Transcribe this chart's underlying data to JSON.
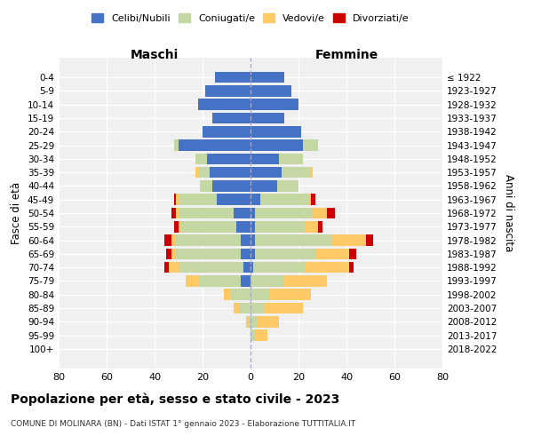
{
  "age_groups": [
    "0-4",
    "5-9",
    "10-14",
    "15-19",
    "20-24",
    "25-29",
    "30-34",
    "35-39",
    "40-44",
    "45-49",
    "50-54",
    "55-59",
    "60-64",
    "65-69",
    "70-74",
    "75-79",
    "80-84",
    "85-89",
    "90-94",
    "95-99",
    "100+"
  ],
  "birth_years": [
    "2018-2022",
    "2013-2017",
    "2008-2012",
    "2003-2007",
    "1998-2002",
    "1993-1997",
    "1988-1992",
    "1983-1987",
    "1978-1982",
    "1973-1977",
    "1968-1972",
    "1963-1967",
    "1958-1962",
    "1953-1957",
    "1948-1952",
    "1943-1947",
    "1938-1942",
    "1933-1937",
    "1928-1932",
    "1923-1927",
    "≤ 1922"
  ],
  "males": {
    "celibi": [
      15,
      19,
      22,
      16,
      20,
      30,
      18,
      17,
      16,
      14,
      7,
      6,
      4,
      4,
      3,
      4,
      0,
      0,
      0,
      0,
      0
    ],
    "coniugati": [
      0,
      0,
      0,
      0,
      0,
      2,
      5,
      5,
      5,
      16,
      23,
      23,
      27,
      27,
      27,
      18,
      8,
      5,
      1,
      0,
      0
    ],
    "vedovi": [
      0,
      0,
      0,
      0,
      0,
      0,
      0,
      1,
      0,
      1,
      1,
      1,
      2,
      2,
      4,
      5,
      3,
      2,
      1,
      0,
      0
    ],
    "divorziati": [
      0,
      0,
      0,
      0,
      0,
      0,
      0,
      0,
      0,
      1,
      2,
      2,
      3,
      2,
      2,
      0,
      0,
      0,
      0,
      0,
      0
    ]
  },
  "females": {
    "nubili": [
      14,
      17,
      20,
      14,
      21,
      22,
      12,
      13,
      11,
      4,
      2,
      2,
      2,
      2,
      1,
      0,
      0,
      0,
      0,
      0,
      0
    ],
    "coniugate": [
      0,
      0,
      0,
      0,
      0,
      6,
      10,
      12,
      9,
      20,
      24,
      21,
      32,
      25,
      22,
      14,
      8,
      6,
      3,
      2,
      0
    ],
    "vedove": [
      0,
      0,
      0,
      0,
      0,
      0,
      0,
      1,
      0,
      1,
      6,
      5,
      14,
      14,
      18,
      18,
      17,
      16,
      9,
      5,
      0
    ],
    "divorziate": [
      0,
      0,
      0,
      0,
      0,
      0,
      0,
      0,
      0,
      2,
      3,
      2,
      3,
      3,
      2,
      0,
      0,
      0,
      0,
      0,
      0
    ]
  },
  "colors": {
    "celibi_nubili": "#4472c4",
    "coniugati": "#c5d8a4",
    "vedovi": "#ffc966",
    "divorziati": "#cc0000"
  },
  "xlim": 80,
  "title": "Popolazione per età, sesso e stato civile - 2023",
  "subtitle": "COMUNE DI MOLINARA (BN) - Dati ISTAT 1° gennaio 2023 - Elaborazione TUTTITALIA.IT",
  "ylabel_left": "Fasce di età",
  "ylabel_right": "Anni di nascita",
  "xlabel_left": "Maschi",
  "xlabel_right": "Femmine",
  "background_color": "#f0f0f0"
}
